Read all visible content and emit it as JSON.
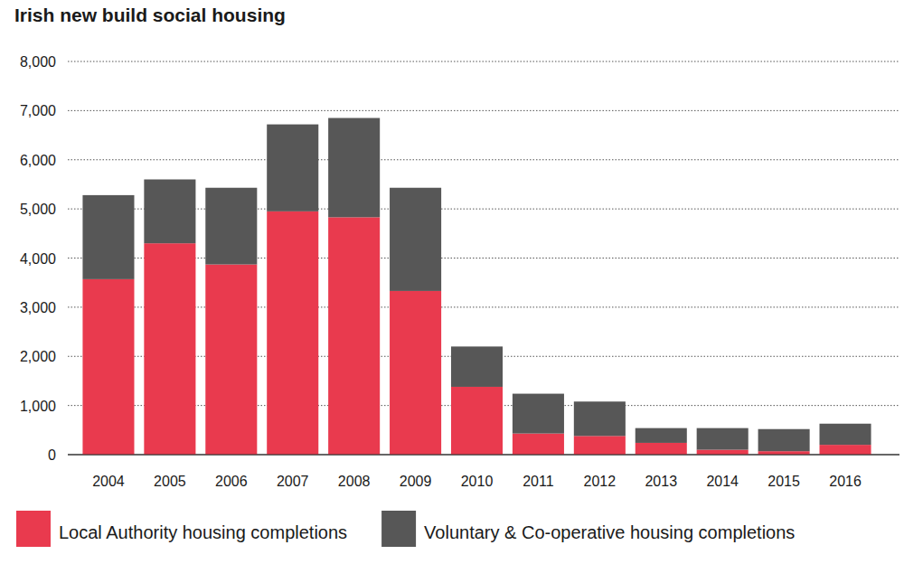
{
  "chart_data": {
    "type": "bar",
    "title": "Irish new build social housing",
    "categories": [
      "2004",
      "2005",
      "2006",
      "2007",
      "2008",
      "2009",
      "2010",
      "2011",
      "2012",
      "2013",
      "2014",
      "2015",
      "2016"
    ],
    "series": [
      {
        "name": "Local Authority housing completions",
        "color": "#e93a4e",
        "values": [
          3570,
          4300,
          3870,
          4950,
          4830,
          3330,
          1380,
          430,
          380,
          240,
          100,
          70,
          200
        ]
      },
      {
        "name": "Voluntary & Co-operative housing completions",
        "color": "#575757",
        "values": [
          1710,
          1300,
          1560,
          1770,
          2020,
          2100,
          820,
          810,
          700,
          300,
          440,
          450,
          430
        ]
      }
    ],
    "ylim": [
      0,
      8000
    ],
    "yticks": [
      0,
      {
        "value": 1000,
        "label": "1,000"
      },
      {
        "value": 2000,
        "label": "2,000"
      },
      {
        "value": 3000,
        "label": "3,000"
      },
      {
        "value": 4000,
        "label": "4,000"
      },
      {
        "value": 5000,
        "label": "5,000"
      },
      {
        "value": 6000,
        "label": "6,000"
      },
      {
        "value": 7000,
        "label": "7,000"
      },
      {
        "value": 8000,
        "label": "8,000"
      }
    ],
    "grid": true,
    "stacked": true,
    "legend": "bottom"
  }
}
